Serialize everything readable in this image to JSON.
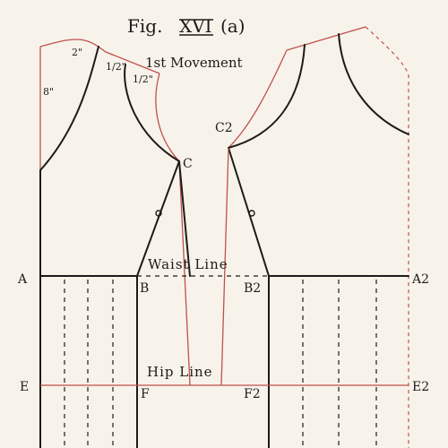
{
  "figure": {
    "title_prefix": "Fig.",
    "title_numeral": "XVI",
    "title_suffix": "(a)",
    "subtitle": "1st Movement"
  },
  "labels": {
    "waist_line": "Waist Line",
    "hip_line": "Hip Line"
  },
  "points": {
    "A": "A",
    "A2": "A2",
    "B": "B",
    "B2": "B2",
    "C": "C",
    "C2": "C2",
    "E": "E",
    "E2": "E2",
    "F": "F",
    "F2": "F2"
  },
  "measurements": {
    "neck": "2\"",
    "shoulder_a": "1/2\"",
    "shoulder_b": "1/2\"",
    "front": "8\""
  },
  "colors": {
    "ink": "#1e1a1a",
    "red_construction": "#c0504d",
    "paper": "#f7f3ea"
  }
}
